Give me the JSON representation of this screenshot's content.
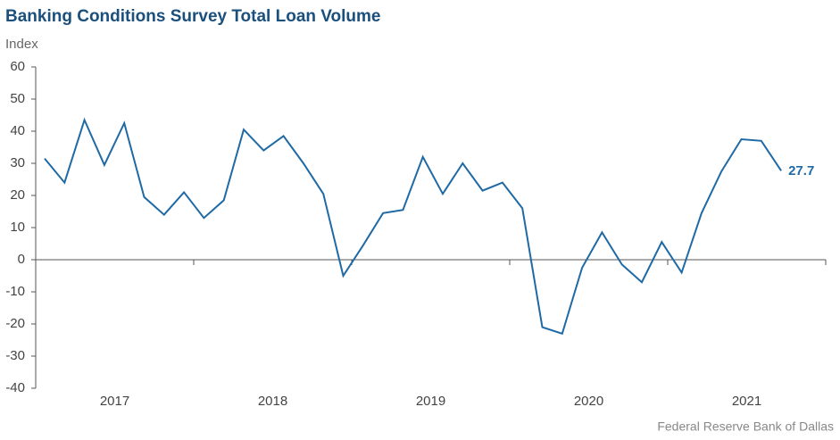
{
  "chart_data": {
    "type": "line",
    "title": "Banking Conditions Survey Total Loan Volume",
    "y_label": "Index",
    "source": "Federal Reserve Bank of Dallas",
    "year_labels": [
      "2017",
      "2018",
      "2019",
      "2020",
      "2021"
    ],
    "series": [
      {
        "name": "Total Loan Volume",
        "color": "#1f6aa5",
        "values": [
          31.5,
          24,
          43.5,
          29.5,
          42.5,
          19.5,
          14,
          21,
          13,
          18.5,
          40.5,
          34,
          38.5,
          30,
          20.5,
          -5,
          4.5,
          14.5,
          15.5,
          32,
          20.5,
          30,
          21.5,
          24,
          16,
          -21,
          -23,
          -2.5,
          8.5,
          -1.5,
          -7,
          5.5,
          -4,
          14.5,
          27.5,
          37.5,
          37,
          27.7
        ]
      }
    ],
    "ylim": [
      -40,
      60
    ],
    "yticks": [
      -40,
      -30,
      -20,
      -10,
      0,
      10,
      20,
      30,
      40,
      50,
      60
    ],
    "grid": false
  }
}
